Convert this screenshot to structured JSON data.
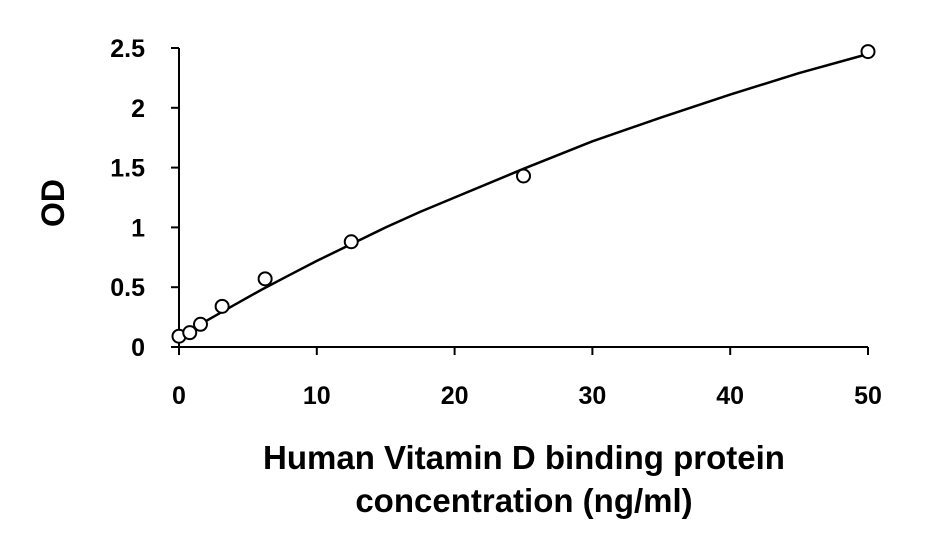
{
  "chart_data": {
    "type": "scatter",
    "title": "",
    "xlabel_lines": [
      "Human Vitamin D binding protein",
      "concentration (ng/ml)"
    ],
    "ylabel": "OD",
    "xlim": [
      0,
      50
    ],
    "ylim": [
      0,
      2.5
    ],
    "x_ticks": [
      0,
      10,
      20,
      30,
      40,
      50
    ],
    "y_ticks": [
      0,
      0.5,
      1,
      1.5,
      2,
      2.5
    ],
    "x_tick_labels": [
      "0",
      "10",
      "20",
      "30",
      "40",
      "50"
    ],
    "y_tick_labels": [
      "0",
      "0.5",
      "1",
      "1.5",
      "2",
      "2.5"
    ],
    "grid": false,
    "legend": "none",
    "series": [
      {
        "x": [
          0,
          0.78,
          1.56,
          3.13,
          6.25,
          12.5,
          25,
          50
        ],
        "y": [
          0.09,
          0.12,
          0.19,
          0.34,
          0.57,
          0.88,
          1.43,
          2.47
        ],
        "marker": "open-circle",
        "color": "#000000"
      }
    ],
    "fit_curve": {
      "x": [
        0,
        2,
        4,
        6,
        8,
        10,
        12.5,
        15,
        17.5,
        20,
        25,
        30,
        35,
        40,
        45,
        50
      ],
      "y": [
        0.1,
        0.22,
        0.35,
        0.48,
        0.6,
        0.72,
        0.86,
        1.0,
        1.13,
        1.25,
        1.49,
        1.72,
        1.92,
        2.11,
        2.29,
        2.45
      ],
      "color": "#000000"
    }
  }
}
